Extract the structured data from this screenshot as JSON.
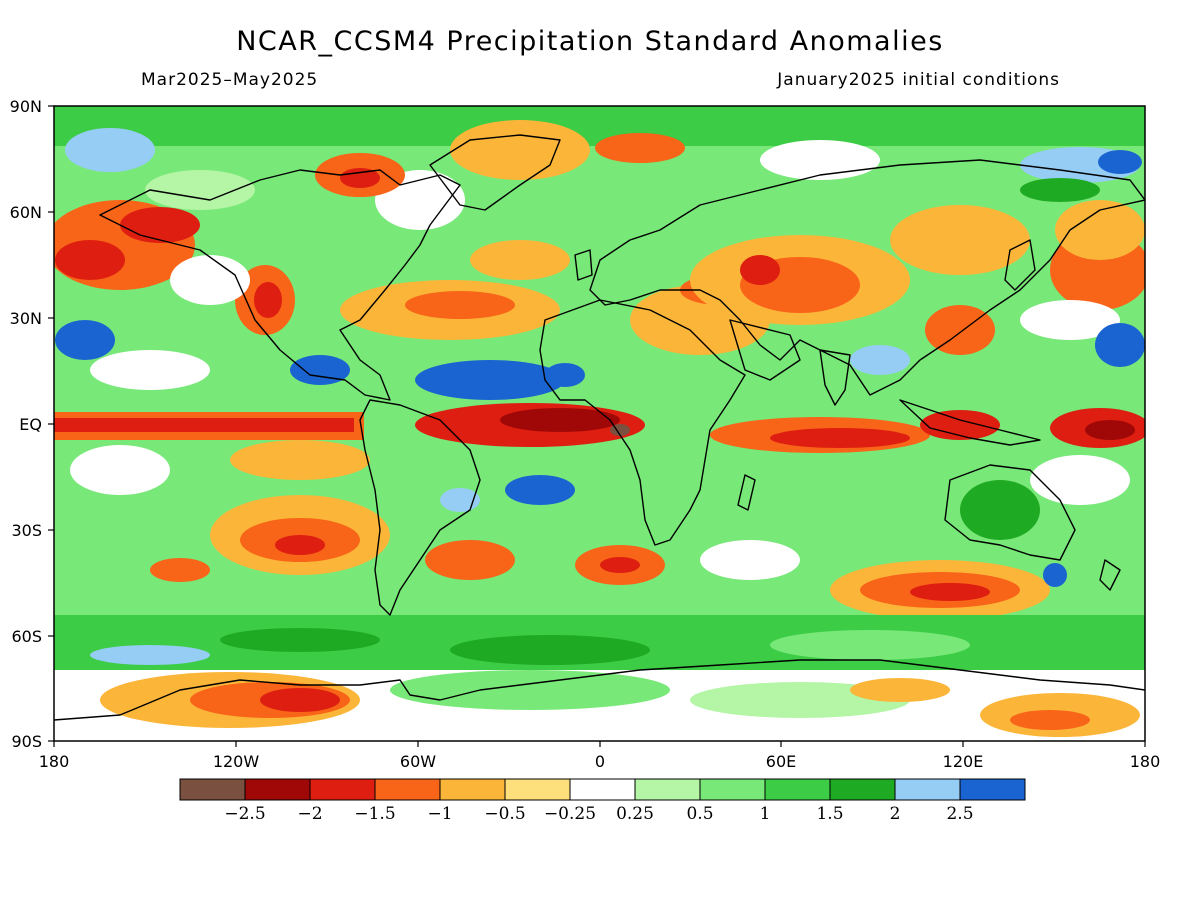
{
  "title": "NCAR_CCSM4 Precipitation Standard Anomalies",
  "subtitle_left": "Mar2025–May2025",
  "subtitle_right": "January2025 initial conditions",
  "lat_ticks": [
    "90N",
    "60N",
    "30N",
    "EQ",
    "30S",
    "60S",
    "90S"
  ],
  "lon_ticks": [
    "180",
    "120W",
    "60W",
    "0",
    "60E",
    "120E",
    "180"
  ],
  "colorbar": {
    "colors": [
      "#7a5040",
      "#a00808",
      "#dd1e10",
      "#f86418",
      "#fbb63a",
      "#fde07c",
      "#ffffff",
      "#b4f5a6",
      "#78e878",
      "#3ccc46",
      "#1faa23",
      "#96cdf4",
      "#1a64d2"
    ],
    "labels": [
      "−2.5",
      "−2",
      "−1.5",
      "−1",
      "−0.5",
      "−0.25",
      "0.25",
      "0.5",
      "1",
      "1.5",
      "2",
      "2.5"
    ]
  },
  "palette": {
    "deep_brown": "#7a5040",
    "dark_red": "#a00808",
    "red": "#dd1e10",
    "orange_red": "#f86418",
    "orange": "#fbb63a",
    "light_orange": "#fde07c",
    "white": "#ffffff",
    "light_green": "#b4f5a6",
    "green": "#78e878",
    "mid_green": "#3ccc46",
    "dark_green": "#1faa23",
    "light_blue": "#96cdf4",
    "blue": "#1a64d2"
  }
}
